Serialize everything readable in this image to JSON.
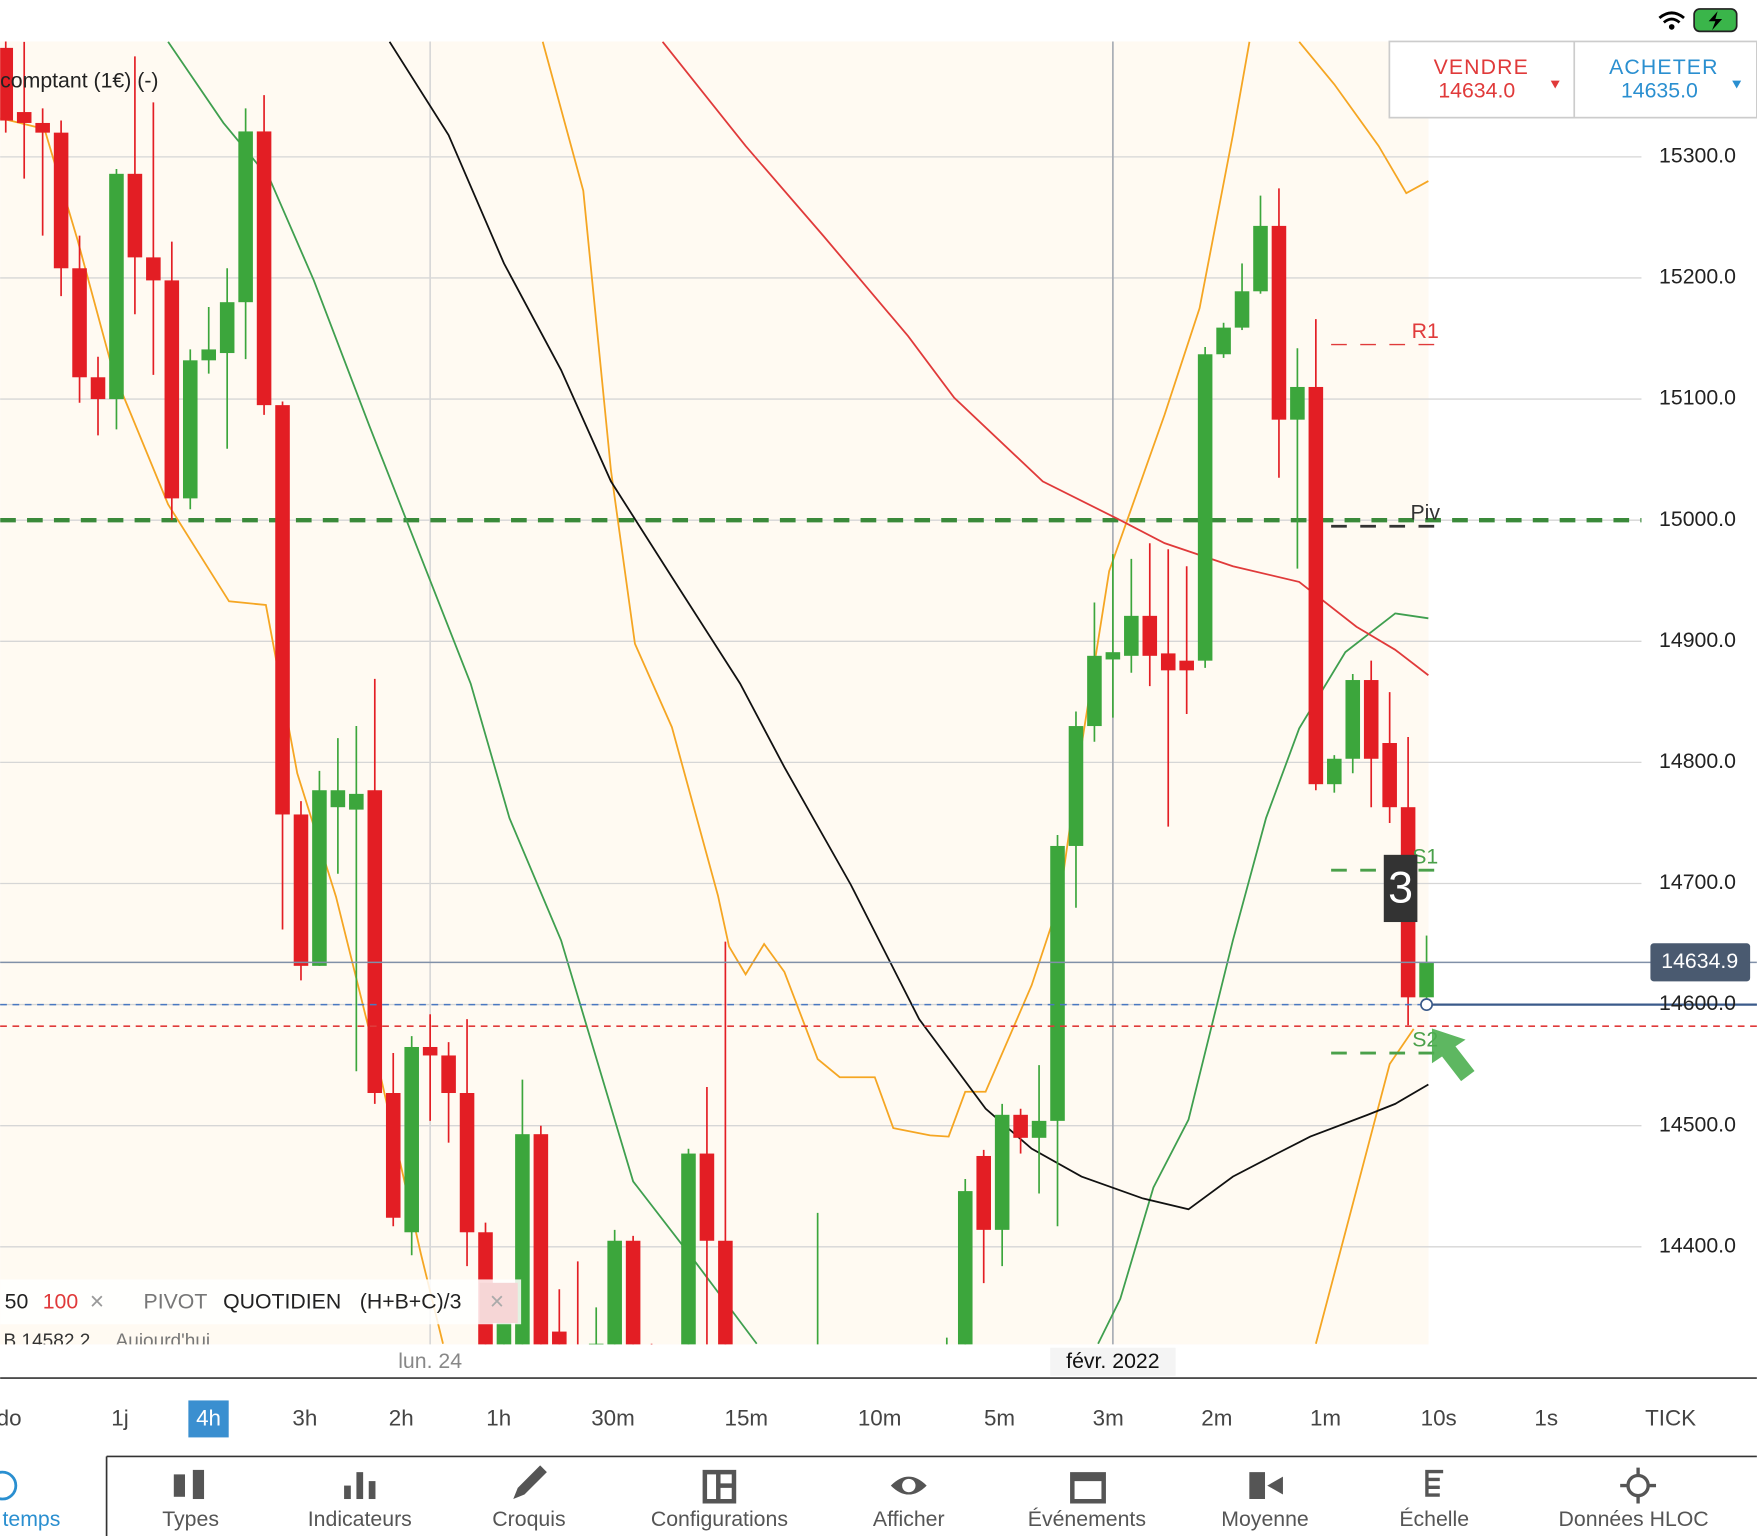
{
  "header": {
    "instrument": "comptant (1€) (-)"
  },
  "quote": {
    "sell_label": "VENDRE",
    "sell_price": "14634.0",
    "buy_label": "ACHETER",
    "buy_price": "14635.0"
  },
  "badge": "3",
  "chart_data": {
    "type": "candlestick",
    "categories": [
      null,
      null,
      null,
      null,
      null,
      null,
      null,
      null,
      null,
      null,
      null,
      null,
      null,
      null,
      null,
      null,
      null,
      null,
      null,
      null,
      null,
      null,
      null,
      "lun. 24",
      null,
      null,
      null,
      null,
      null,
      null,
      null,
      null,
      null,
      null,
      null,
      null,
      null,
      null,
      null,
      null,
      null,
      null,
      null,
      null,
      null,
      null,
      null,
      null,
      null,
      null,
      null,
      null,
      null,
      null,
      null,
      null,
      null,
      null,
      null,
      null,
      "févr. 2022",
      null,
      null,
      null,
      null,
      null,
      null,
      null,
      null,
      null,
      null,
      null,
      null,
      null,
      null,
      null,
      null,
      null
    ],
    "open": [
      15390,
      15337,
      15328,
      15320,
      15208,
      15118,
      15100,
      15286,
      15217,
      15198,
      15018,
      15132,
      15138,
      15180,
      15321,
      15095,
      14757,
      14632,
      14763,
      14761,
      14777,
      14527,
      14412,
      14565,
      14558,
      14527,
      14412,
      14300,
      14310,
      14493,
      14330,
      14310,
      14300,
      14310,
      14405,
      14310,
      14290,
      14310,
      14477,
      14405,
      14310,
      14285,
      14270,
      14290,
      14265,
      14310,
      14275,
      14260,
      14270,
      14250,
      14265,
      14280,
      14300,
      14475,
      14414,
      14509,
      14490,
      14504,
      14731,
      14830,
      14885,
      14888,
      14921,
      14890,
      14884,
      14884,
      15137,
      15159,
      15189,
      15243,
      15083,
      15110,
      14782,
      14803,
      14868,
      14816,
      14763,
      14606
    ],
    "high": [
      15400,
      15395,
      15340,
      15330,
      15235,
      15135,
      15290,
      15383,
      15345,
      15230,
      15141,
      15176,
      15208,
      15340,
      15351,
      15098,
      14768,
      14793,
      14820,
      14830,
      14869,
      14560,
      14574,
      14592,
      14569,
      14588,
      14420,
      14350,
      14538,
      14500,
      14365,
      14388,
      14350,
      14414,
      14409,
      14320,
      14310,
      14481,
      14532,
      14652,
      14318,
      14300,
      14295,
      14305,
      14428,
      14316,
      14290,
      14280,
      14285,
      14275,
      14290,
      14325,
      14456,
      14480,
      14518,
      14514,
      14550,
      14740,
      14842,
      14932,
      14972,
      14968,
      14981,
      14976,
      14962,
      15143,
      15163,
      15212,
      15268,
      15274,
      15142,
      15166,
      14806,
      14873,
      14884,
      14858,
      14821,
      14657
    ],
    "low": [
      15320,
      15282,
      15235,
      15185,
      15097,
      15070,
      15075,
      15170,
      15120,
      15000,
      15009,
      15121,
      15059,
      15133,
      15087,
      14662,
      14620,
      14632,
      14708,
      14545,
      14518,
      14417,
      14393,
      14504,
      14486,
      14384,
      14280,
      14280,
      14300,
      14300,
      14290,
      14280,
      14290,
      14300,
      14300,
      14270,
      14270,
      14300,
      14310,
      14300,
      14260,
      14250,
      14240,
      14255,
      14250,
      14260,
      14245,
      14230,
      14240,
      14225,
      14245,
      14260,
      14290,
      14370,
      14384,
      14477,
      14444,
      14417,
      14680,
      14817,
      14837,
      14874,
      14863,
      14747,
      14840,
      14878,
      15134,
      15157,
      15187,
      15035,
      14960,
      14777,
      14775,
      14791,
      14763,
      14750,
      14583,
      14597
    ],
    "close": [
      15330,
      15328,
      15320,
      15208,
      15118,
      15100,
      15286,
      15217,
      15198,
      15018,
      15132,
      15141,
      15180,
      15321,
      15095,
      14757,
      14632,
      14777,
      14777,
      14774,
      14527,
      14424,
      14565,
      14558,
      14527,
      14412,
      14300,
      14340,
      14493,
      14310,
      14300,
      14300,
      14320,
      14405,
      14310,
      14290,
      14300,
      14477,
      14405,
      14310,
      14285,
      14270,
      14290,
      14265,
      14310,
      14275,
      14260,
      14270,
      14250,
      14265,
      14280,
      14300,
      14446,
      14414,
      14509,
      14490,
      14504,
      14731,
      14830,
      14888,
      14891,
      14921,
      14888,
      14876,
      14876,
      15137,
      15159,
      15189,
      15243,
      15083,
      15110,
      14782,
      14803,
      14868,
      14803,
      14763,
      14606,
      14635
    ],
    "up_color": "#3ca63c",
    "down_color": "#e31e24",
    "ylim": [
      14319.4,
      15395.3
    ],
    "yticks": [
      {
        "value": 14400,
        "label": "14400.0"
      },
      {
        "value": 14500,
        "label": "14500.0"
      },
      {
        "value": 14600,
        "label": "14600.0"
      },
      {
        "value": 14700,
        "label": "14700.0"
      },
      {
        "value": 14800,
        "label": "14800.0"
      },
      {
        "value": 14900,
        "label": "14900.0"
      },
      {
        "value": 15000,
        "label": "15000.0"
      },
      {
        "value": 15100,
        "label": "15100.0"
      },
      {
        "value": 15200,
        "label": "15200.0"
      },
      {
        "value": 15300,
        "label": "15300.0"
      }
    ],
    "grid": true,
    "overlays": [
      {
        "color": "#f5a623",
        "x": [
          -0.3,
          2.1,
          3.9,
          5.8,
          8.8,
          12.1,
          14.1,
          15.8,
          17.9,
          20.3,
          22.5,
          23.7
        ],
        "values": [
          15332,
          15323,
          15231,
          15124,
          15013,
          14933,
          14930,
          14791,
          14689,
          14542,
          14394,
          14320
        ]
      },
      {
        "color": "#f5a623",
        "x": [
          29.1,
          31.3,
          32.8,
          34.1,
          36.1,
          38.6,
          39.2,
          40.1,
          41.1,
          42.2,
          44,
          45.2,
          47.1,
          48.1,
          50.1,
          51.1,
          52,
          53.1,
          55.6,
          57.1,
          58.3,
          59.8,
          62.8,
          64.7,
          66.5,
          67.4
        ],
        "values": [
          15395,
          15272,
          15041,
          14898,
          14829,
          14690,
          14648,
          14625,
          14650,
          14627,
          14555,
          14540,
          14540,
          14498,
          14492,
          14491,
          14528,
          14528,
          14616,
          14685,
          14814,
          14958,
          15087,
          15175,
          15318,
          15395
        ]
      },
      {
        "color": "#f5a623",
        "x": [
          70.1,
          72,
          74.4,
          75.9,
          77.1
        ],
        "values": [
          15395,
          15360,
          15309,
          15270,
          15280
        ]
      },
      {
        "color": "#f5a623",
        "x": [
          71,
          72.6,
          75,
          76.3
        ],
        "values": [
          14320,
          14412,
          14551,
          14580
        ]
      },
      {
        "color": "#3f9f4f",
        "x": [
          8.8,
          11.8,
          14.3,
          16.7,
          19.7,
          22.8,
          25.2,
          27.3,
          30.1,
          34,
          37.3,
          40.7
        ],
        "values": [
          15395,
          15328,
          15282,
          15198,
          15078,
          14958,
          14865,
          14754,
          14653,
          14454,
          14389,
          14320
        ]
      },
      {
        "color": "#3f9f4f",
        "x": [
          59.2,
          60.4,
          62.2,
          64.1,
          66.5,
          68.3,
          70.1,
          72.6,
          75.3,
          77.1
        ],
        "values": [
          14320,
          14357,
          14449,
          14505,
          14653,
          14754,
          14828,
          14891,
          14923,
          14919
        ]
      },
      {
        "color": "#111111",
        "x": [
          20.8,
          24,
          27,
          30.1,
          32.8,
          36.1,
          39.8,
          42.2,
          45.8,
          49.5,
          53.1,
          55.6,
          58.3,
          61.6,
          64.1,
          66.5,
          68.9,
          70.7,
          73.8,
          75.3,
          77.1
        ],
        "values": [
          15395,
          15318,
          15212,
          15124,
          15032,
          14953,
          14865,
          14796,
          14699,
          14588,
          14514,
          14481,
          14458,
          14440,
          14431,
          14458,
          14477,
          14491,
          14509,
          14518,
          14534
        ]
      },
      {
        "color": "#e03a3a",
        "x": [
          35.6,
          40.1,
          44.3,
          48.9,
          51.4,
          56.2,
          60.4,
          62.8,
          66.5,
          70.1,
          73.2,
          75.3,
          77.1
        ],
        "values": [
          15395,
          15309,
          15235,
          15152,
          15101,
          15032,
          15000,
          14981,
          14962,
          14949,
          14912,
          14893,
          14872
        ]
      }
    ],
    "pivot_line": {
      "value": 15000,
      "color": "#3a8a3a"
    },
    "levels": [
      {
        "label": "R1",
        "value": 15145,
        "color": "#e03a3a"
      },
      {
        "label": "Piv",
        "value": 14995,
        "color": "#333333"
      },
      {
        "label": "S1",
        "value": 14711,
        "color": "#4aa04a"
      },
      {
        "label": "S2",
        "value": 14560,
        "color": "#4aa04a"
      }
    ],
    "price_lines": [
      {
        "value": 14634.9,
        "color": "#8090a8"
      },
      {
        "value": 14600,
        "color": "#4a78c0"
      },
      {
        "value": 14582.2,
        "color": "#e03a3a"
      }
    ]
  },
  "indicator_legend": {
    "period_a": "50",
    "period_b": "100",
    "remove": "×",
    "pivot_name": "PIVOT",
    "pivot_period": "QUOTIDIEN",
    "pivot_formula": "(H+B+C)/3",
    "pivot_remove": "×",
    "bid_info": "B 14582.2",
    "day_info": "Aujourd'hui"
  },
  "timeframes": {
    "items": [
      "do",
      "1j",
      "4h",
      "3h",
      "2h",
      "1h",
      "30m",
      "15m",
      "10m",
      "5m",
      "3m",
      "2m",
      "1m",
      "10s",
      "1s",
      "TICK"
    ],
    "selected": "4h"
  },
  "toolbar": [
    "e temps",
    "Types",
    "Indicateurs",
    "Croquis",
    "Configurations",
    "Afficher",
    "Événements",
    "Moyenne",
    "Échelle",
    "Données HLOC"
  ]
}
